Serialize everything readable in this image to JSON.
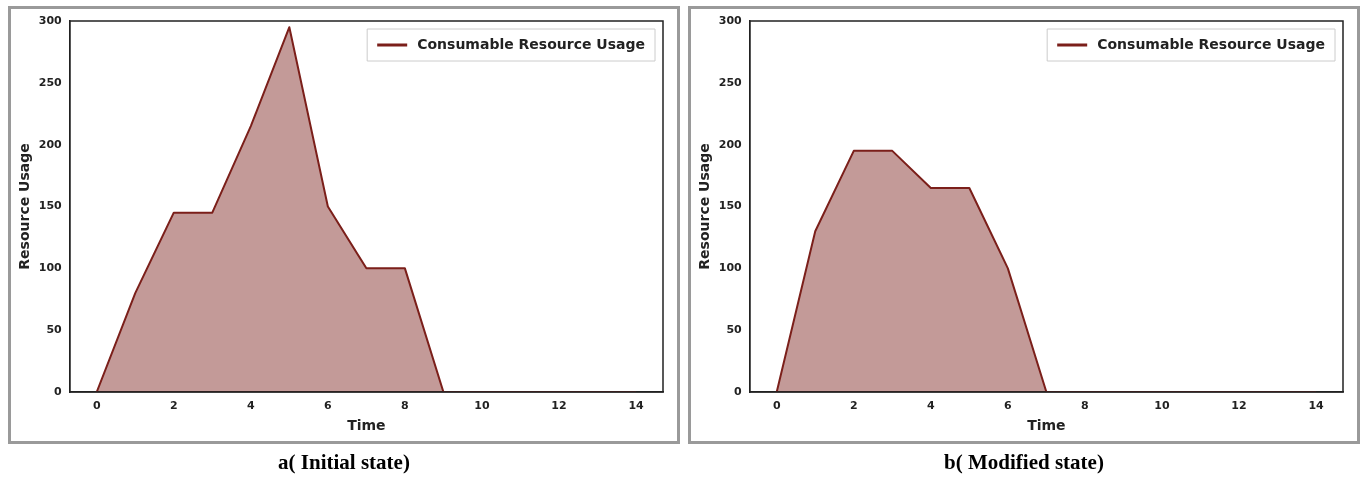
{
  "chart_data": [
    {
      "type": "area",
      "title": "a( Initial state)",
      "xlabel": "Time",
      "ylabel": "Resource Usage",
      "x": [
        0,
        1,
        2,
        3,
        4,
        5,
        6,
        7,
        8,
        9,
        10,
        11,
        12,
        13,
        14
      ],
      "series": [
        {
          "name": "Consumable Resource Usage",
          "color": "#7b1f1a",
          "values": [
            0,
            80,
            145,
            145,
            215,
            295,
            150,
            100,
            100,
            0,
            0,
            0,
            0,
            0,
            0
          ]
        }
      ],
      "xlim": [
        -0.7,
        14.7
      ],
      "xticks": [
        0,
        2,
        4,
        6,
        8,
        10,
        12,
        14
      ],
      "ylim": [
        0,
        300
      ],
      "yticks": [
        0,
        50,
        100,
        150,
        200,
        250,
        300
      ],
      "grid": false,
      "legend": "top right"
    },
    {
      "type": "area",
      "title": "b( Modified state)",
      "xlabel": "Time",
      "ylabel": "Resource Usage",
      "x": [
        0,
        1,
        2,
        3,
        4,
        5,
        6,
        7,
        8,
        9,
        10,
        11,
        12,
        13,
        14
      ],
      "series": [
        {
          "name": "Consumable Resource Usage",
          "color": "#7b1f1a",
          "values": [
            0,
            130,
            195,
            195,
            165,
            165,
            100,
            0,
            0,
            0,
            0,
            0,
            0,
            0,
            0
          ]
        }
      ],
      "xlim": [
        -0.7,
        14.7
      ],
      "xticks": [
        0,
        2,
        4,
        6,
        8,
        10,
        12,
        14
      ],
      "ylim": [
        0,
        300
      ],
      "yticks": [
        0,
        50,
        100,
        150,
        200,
        250,
        300
      ],
      "grid": false,
      "legend": "top right"
    }
  ]
}
